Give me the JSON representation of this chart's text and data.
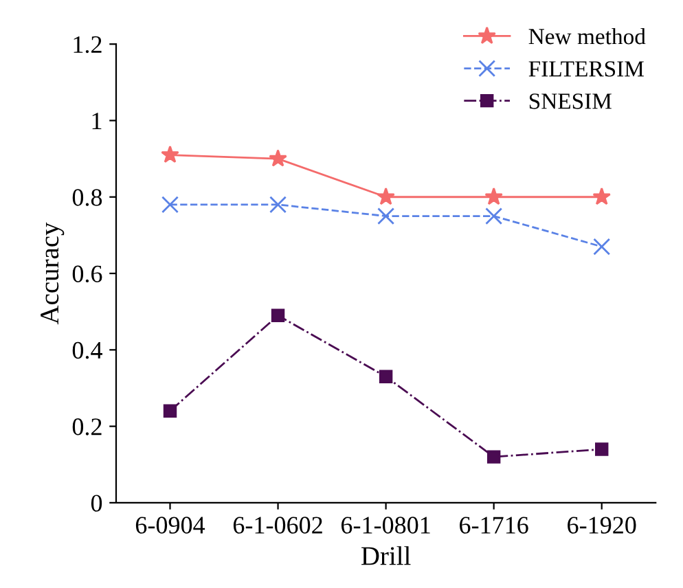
{
  "chart_data": {
    "type": "line",
    "xlabel": "Drill",
    "ylabel": "Accuracy",
    "categories": [
      "6-0904",
      "6-1-0602",
      "6-1-0801",
      "6-1716",
      "6-1920"
    ],
    "series": [
      {
        "name": "New method",
        "color": "#f46b6b",
        "marker": "star",
        "line_style": "solid",
        "values": [
          0.91,
          0.9,
          0.8,
          0.8,
          0.8
        ]
      },
      {
        "name": "FILTERSIM",
        "color": "#5a82e6",
        "marker": "cross",
        "line_style": "dashed",
        "values": [
          0.78,
          0.78,
          0.75,
          0.75,
          0.67
        ]
      },
      {
        "name": "SNESIM",
        "color": "#4a0b52",
        "marker": "square",
        "line_style": "dashdot",
        "values": [
          0.24,
          0.49,
          0.33,
          0.12,
          0.14
        ]
      }
    ],
    "ylim": [
      0,
      1.2
    ],
    "yticks": [
      0,
      0.2,
      0.4,
      0.6,
      0.8,
      1,
      1.2
    ],
    "grid": false,
    "legend": "top right"
  }
}
